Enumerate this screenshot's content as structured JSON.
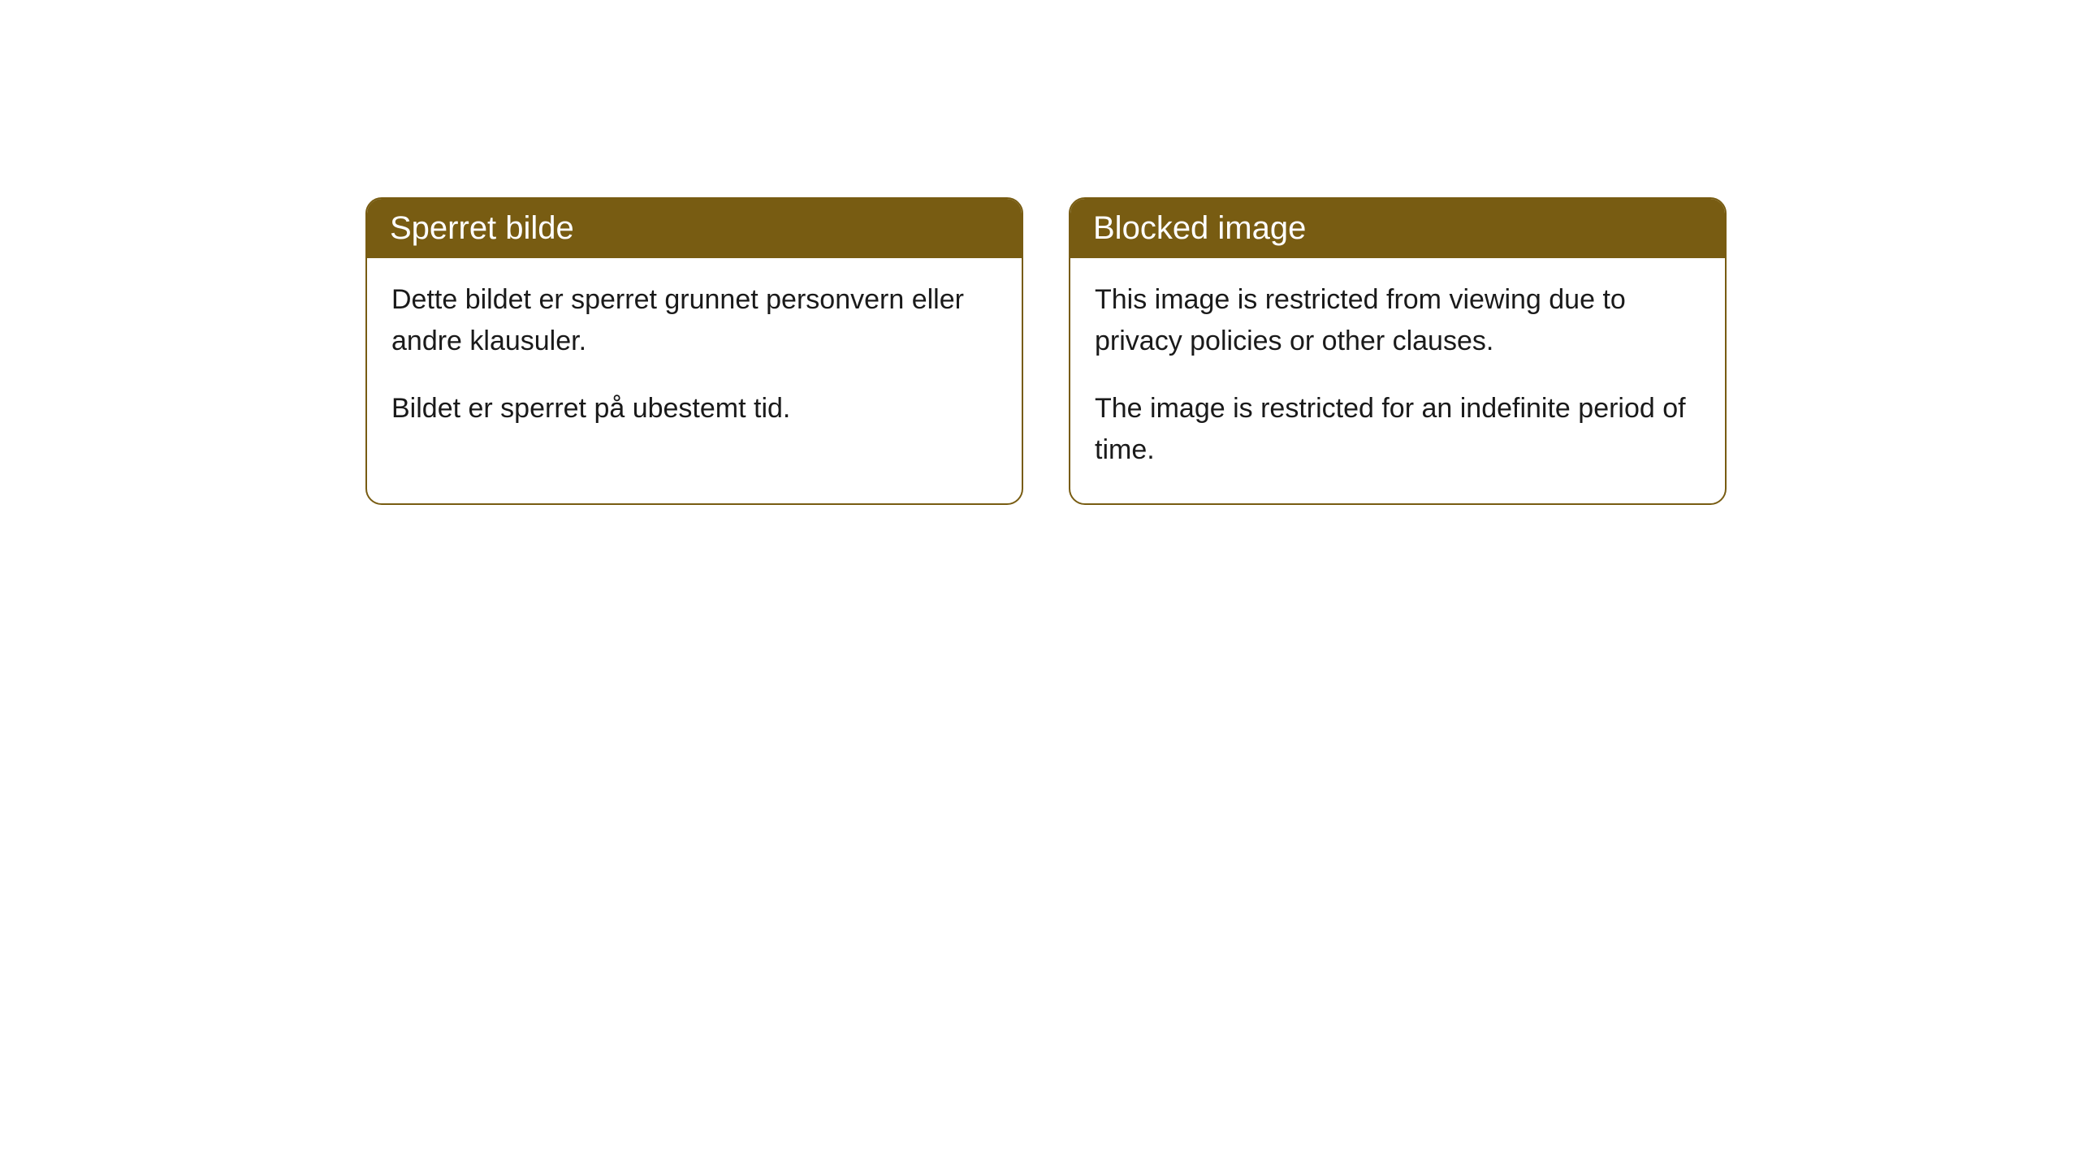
{
  "cards": [
    {
      "title": "Sperret bilde",
      "paragraph1": "Dette bildet er sperret grunnet personvern eller andre klausuler.",
      "paragraph2": "Bildet er sperret på ubestemt tid."
    },
    {
      "title": "Blocked image",
      "paragraph1": "This image is restricted from viewing due to privacy policies or other clauses.",
      "paragraph2": "The image is restricted for an indefinite period of time."
    }
  ],
  "style": {
    "header_background": "#785c12",
    "header_text_color": "#ffffff",
    "border_color": "#785c12",
    "body_background": "#ffffff",
    "body_text_color": "#1a1a1a",
    "border_radius": 20,
    "header_fontsize": 40,
    "body_fontsize": 34
  }
}
